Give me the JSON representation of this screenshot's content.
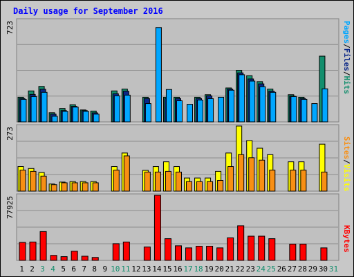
{
  "chart_data": [
    {
      "type": "bar",
      "title": "Daily usage for September 2016",
      "max_label": "723",
      "categories": [
        "1",
        "2",
        "3",
        "4",
        "5",
        "6",
        "7",
        "8",
        "9",
        "10",
        "11",
        "12",
        "13",
        "14",
        "15",
        "16",
        "17",
        "18",
        "19",
        "20",
        "21",
        "22",
        "23",
        "24",
        "25",
        "26",
        "27",
        "28",
        "29",
        "30",
        "31"
      ],
      "weekend_days": [
        "3",
        "4",
        "10",
        "11",
        "17",
        "18",
        "24",
        "25",
        "31"
      ],
      "ylim": [
        0,
        723
      ],
      "series": [
        {
          "name": "Hits",
          "color": "#138e6d",
          "values": [
            175,
            220,
            252,
            65,
            95,
            122,
            85,
            77,
            0,
            220,
            233,
            0,
            175,
            0,
            175,
            175,
            0,
            175,
            193,
            0,
            241,
            366,
            328,
            286,
            233,
            0,
            193,
            175,
            0,
            467,
            0
          ]
        },
        {
          "name": "Files",
          "color": "#0a2686",
          "values": [
            166,
            195,
            232,
            55,
            80,
            110,
            80,
            64,
            0,
            200,
            218,
            0,
            166,
            0,
            166,
            166,
            0,
            166,
            185,
            0,
            233,
            348,
            305,
            270,
            218,
            0,
            183,
            166,
            0,
            0,
            0
          ]
        },
        {
          "name": "Pages",
          "color": "#00a6ff",
          "values": [
            160,
            180,
            210,
            40,
            75,
            105,
            75,
            55,
            0,
            185,
            190,
            0,
            130,
            670,
            230,
            150,
            125,
            155,
            165,
            175,
            225,
            335,
            290,
            250,
            210,
            0,
            180,
            160,
            130,
            235,
            0
          ]
        }
      ],
      "ylabel_parts": [
        "Pages",
        "Files",
        "Hits"
      ]
    },
    {
      "type": "bar",
      "max_label": "273",
      "categories": [
        "1",
        "2",
        "3",
        "4",
        "5",
        "6",
        "7",
        "8",
        "9",
        "10",
        "11",
        "12",
        "13",
        "14",
        "15",
        "16",
        "17",
        "18",
        "19",
        "20",
        "21",
        "22",
        "23",
        "24",
        "25",
        "26",
        "27",
        "28",
        "29",
        "30",
        "31"
      ],
      "ylim": [
        0,
        273
      ],
      "series": [
        {
          "name": "Visits",
          "color": "#ffff00",
          "values": [
            103,
            95,
            78,
            30,
            38,
            40,
            40,
            40,
            0,
            103,
            160,
            0,
            87,
            103,
            123,
            103,
            55,
            55,
            55,
            83,
            160,
            273,
            212,
            180,
            153,
            0,
            123,
            123,
            0,
            197,
            0
          ]
        },
        {
          "name": "Sites",
          "color": "#f88f14",
          "values": [
            88,
            83,
            63,
            27,
            35,
            35,
            35,
            35,
            0,
            88,
            148,
            0,
            80,
            80,
            83,
            80,
            40,
            40,
            40,
            45,
            103,
            153,
            140,
            130,
            88,
            0,
            88,
            88,
            0,
            80,
            0
          ]
        }
      ],
      "ylabel_parts": [
        "Sites",
        "Visits"
      ]
    },
    {
      "type": "bar",
      "max_label": "77925",
      "categories": [
        "1",
        "2",
        "3",
        "4",
        "5",
        "6",
        "7",
        "8",
        "9",
        "10",
        "11",
        "12",
        "13",
        "14",
        "15",
        "16",
        "17",
        "18",
        "19",
        "20",
        "21",
        "22",
        "23",
        "24",
        "25",
        "26",
        "27",
        "28",
        "29",
        "30",
        "31"
      ],
      "ylim": [
        0,
        77925
      ],
      "series": [
        {
          "name": "KBytes",
          "color": "#ff0000",
          "values": [
            21500,
            22000,
            34500,
            6000,
            4500,
            11000,
            5000,
            3500,
            0,
            20000,
            22000,
            0,
            16000,
            77925,
            26000,
            17500,
            15000,
            17000,
            17000,
            15000,
            27000,
            41500,
            29000,
            29000,
            26000,
            0,
            19500,
            19500,
            0,
            15000,
            0
          ]
        }
      ],
      "ylabel_parts": [
        "KBytes"
      ]
    }
  ]
}
